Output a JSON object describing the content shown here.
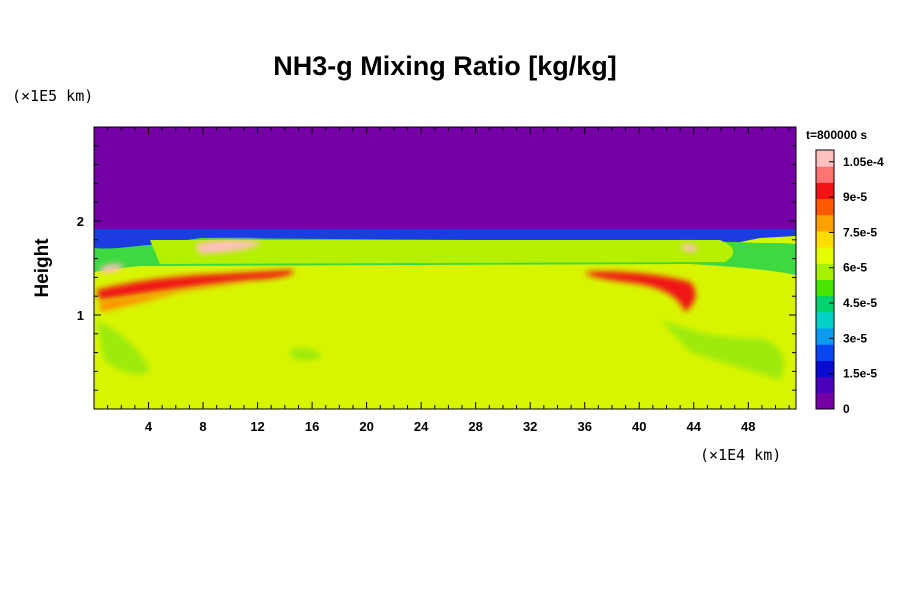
{
  "chart_data": {
    "type": "heatmap",
    "title": "NH3-g Mixing Ratio [kg/kg]",
    "time_label": "t=800000 s",
    "xlabel": "",
    "ylabel": "Height",
    "x_unit": "(×1E4 km)",
    "y_unit": "(×1E5 km)",
    "xlim": [
      0,
      51.5
    ],
    "ylim": [
      0,
      3.0
    ],
    "x_ticks": [
      4,
      8,
      12,
      16,
      20,
      24,
      28,
      32,
      36,
      40,
      44,
      48
    ],
    "y_ticks": [
      1,
      2
    ],
    "colorbar": {
      "range": [
        0,
        0.00011
      ],
      "tick_values": [
        0,
        1.5e-05,
        3e-05,
        4.5e-05,
        6e-05,
        7.5e-05,
        9e-05,
        0.000105
      ],
      "tick_labels": [
        "0",
        "1.5e-5",
        "3e-5",
        "4.5e-5",
        "6e-5",
        "7.5e-5",
        "9e-5",
        "1.05e-4"
      ],
      "colors": [
        "#7400a6",
        "#4b00bb",
        "#0a0ad2",
        "#0a46f0",
        "#0a9cf0",
        "#00d2c8",
        "#00d26e",
        "#46e600",
        "#a8f000",
        "#e6ff00",
        "#ffdc00",
        "#ffa000",
        "#ff5a00",
        "#f01414",
        "#ff7373",
        "#ffc0c0"
      ]
    },
    "field_description": {
      "upper_region_value": 0,
      "lower_region_value": 7.7e-05,
      "boundary_height_center": 1.8,
      "enhanced_band_height": 1.45,
      "peak_value": 0.00011
    }
  }
}
